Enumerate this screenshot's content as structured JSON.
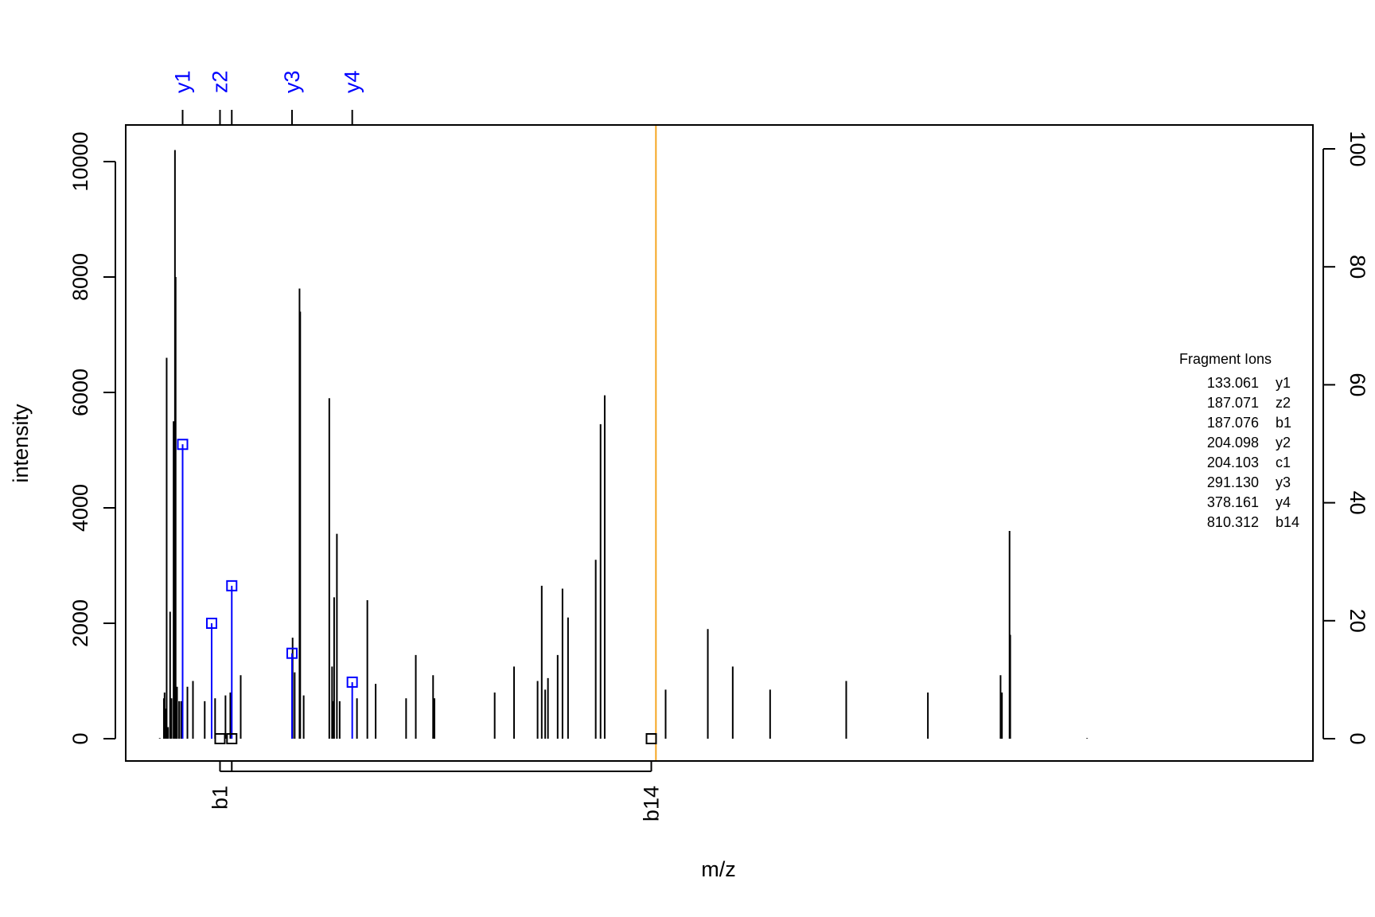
{
  "chart_data": {
    "type": "spectrum",
    "title": "",
    "xlabel": "m/z",
    "ylabel": "intensity",
    "xlim": [
      70,
      1450
    ],
    "ylim": [
      0,
      10500
    ],
    "y_ticks": [
      0,
      2000,
      4000,
      6000,
      8000,
      10000
    ],
    "y2_ticks": [
      0,
      20,
      40,
      60,
      80,
      100
    ],
    "grid": false,
    "peaks": [
      [
        100,
        10
      ],
      [
        106,
        700
      ],
      [
        107,
        800
      ],
      [
        109,
        520
      ],
      [
        110,
        6600
      ],
      [
        112,
        200
      ],
      [
        115,
        2200
      ],
      [
        117,
        700
      ],
      [
        120,
        5500
      ],
      [
        122,
        10200
      ],
      [
        123,
        8000
      ],
      [
        125,
        900
      ],
      [
        128,
        650
      ],
      [
        131,
        650
      ],
      [
        133.061,
        5100
      ],
      [
        140,
        900
      ],
      [
        148,
        1000
      ],
      [
        165,
        650
      ],
      [
        180,
        700
      ],
      [
        195,
        750
      ],
      [
        202,
        800
      ],
      [
        217,
        1100
      ],
      [
        292,
        1750
      ],
      [
        295,
        1150
      ],
      [
        302,
        7800
      ],
      [
        303,
        7400
      ],
      [
        308,
        750
      ],
      [
        345,
        5900
      ],
      [
        349,
        1250
      ],
      [
        351,
        650
      ],
      [
        352,
        2450
      ],
      [
        356,
        3550
      ],
      [
        360,
        650
      ],
      [
        385,
        700
      ],
      [
        400,
        2400
      ],
      [
        412,
        950
      ],
      [
        456,
        700
      ],
      [
        470,
        1450
      ],
      [
        495,
        1100
      ],
      [
        497,
        700
      ],
      [
        584,
        800
      ],
      [
        612,
        1250
      ],
      [
        646,
        1000
      ],
      [
        652,
        2650
      ],
      [
        657,
        850
      ],
      [
        661,
        1050
      ],
      [
        675,
        1450
      ],
      [
        682,
        2600
      ],
      [
        690,
        2100
      ],
      [
        730,
        3100
      ],
      [
        737,
        5450
      ],
      [
        743,
        5950
      ],
      [
        831,
        850
      ],
      [
        892,
        1900
      ],
      [
        928,
        1250
      ],
      [
        982,
        850
      ],
      [
        1092,
        1000
      ],
      [
        1210,
        800
      ],
      [
        1315,
        1100
      ],
      [
        1317,
        800
      ],
      [
        1328,
        3600
      ],
      [
        1329,
        1800
      ],
      [
        1440,
        10
      ]
    ],
    "matched_top": [
      {
        "label": "y1",
        "mz": 133.061,
        "intensity": 5100
      },
      {
        "label": "z2",
        "mz": 187.071,
        "intensity": 0
      },
      {
        "label": "",
        "mz": 204.098,
        "intensity": 2650
      },
      {
        "label": "y3",
        "mz": 291.13,
        "intensity": 1480
      },
      {
        "label": "y4",
        "mz": 378.161,
        "intensity": 980
      }
    ],
    "extra_top_markers": [
      {
        "mz": 175,
        "intensity": 2000
      }
    ],
    "matched_bottom": [
      {
        "label": "b1",
        "mz": 187.076,
        "intensity": 0
      },
      {
        "label": "",
        "mz": 204.103,
        "intensity": 0
      },
      {
        "label": "b14",
        "mz": 810.312,
        "intensity": 0
      }
    ],
    "precursor_line_mz": 817,
    "colors": {
      "matched_top": "#0000ff",
      "matched_bottom": "#000000",
      "precursor": "#f5a623",
      "peaks": "#000000"
    },
    "legend": {
      "title": "Fragment Ions",
      "placement": "right",
      "rows": [
        {
          "mz": "133.061",
          "ion": "y1"
        },
        {
          "mz": "187.071",
          "ion": "z2"
        },
        {
          "mz": "187.076",
          "ion": "b1"
        },
        {
          "mz": "204.098",
          "ion": "y2"
        },
        {
          "mz": "204.103",
          "ion": "c1"
        },
        {
          "mz": "291.130",
          "ion": "y3"
        },
        {
          "mz": "378.161",
          "ion": "y4"
        },
        {
          "mz": "810.312",
          "ion": "b14"
        }
      ]
    }
  }
}
